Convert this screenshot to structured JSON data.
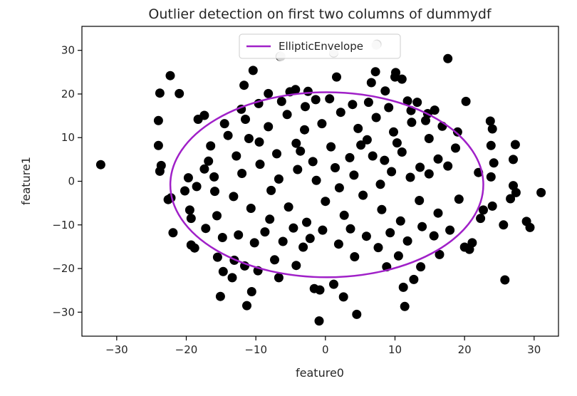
{
  "chart_data": {
    "type": "scatter",
    "title": "Outlier detection on first two columns of dummydf",
    "xlabel": "feature0",
    "ylabel": "feature1",
    "xlim": [
      -35,
      33.5
    ],
    "ylim": [
      -35.5,
      35.5
    ],
    "xticks": [
      -30,
      -20,
      -10,
      0,
      10,
      20,
      30
    ],
    "yticks": [
      -30,
      -20,
      -10,
      0,
      10,
      20,
      30
    ],
    "grid": false,
    "legend": {
      "placement": "upper-center",
      "entries": [
        "EllipticEnvelope"
      ]
    },
    "series": [
      {
        "name": "",
        "kind": "points",
        "color": "#000000",
        "points": [
          [
            -32.3,
            3.8
          ],
          [
            -22.3,
            24.2
          ],
          [
            -23.8,
            20.2
          ],
          [
            -21.0,
            20.1
          ],
          [
            -24.0,
            13.9
          ],
          [
            -24.0,
            8.2
          ],
          [
            -23.6,
            3.6
          ],
          [
            -23.8,
            2.3
          ],
          [
            -22.2,
            -3.8
          ],
          [
            -22.6,
            -4.2
          ],
          [
            -21.9,
            -11.8
          ],
          [
            -19.3,
            -14.6
          ],
          [
            -18.8,
            -15.3
          ],
          [
            -19.5,
            -6.6
          ],
          [
            -19.3,
            -8.5
          ],
          [
            -20.2,
            -2.2
          ],
          [
            -19.7,
            0.8
          ],
          [
            -18.3,
            14.2
          ],
          [
            -17.4,
            15.1
          ],
          [
            -16.5,
            8.1
          ],
          [
            -17.4,
            2.8
          ],
          [
            -15.9,
            -2.3
          ],
          [
            -15.5,
            -17.4
          ],
          [
            -15.1,
            -26.4
          ],
          [
            -14.7,
            -20.7
          ],
          [
            -13.1,
            -18.1
          ],
          [
            -13.4,
            -22.1
          ],
          [
            -11.3,
            -28.5
          ],
          [
            -10.6,
            -25.3
          ],
          [
            -11.6,
            -19.4
          ],
          [
            -10.4,
            25.4
          ],
          [
            -11.7,
            22.0
          ],
          [
            -8.2,
            20.1
          ],
          [
            -6.5,
            28.6
          ],
          [
            -5.1,
            20.5
          ],
          [
            -4.3,
            21.0
          ],
          [
            -2.5,
            20.6
          ],
          [
            -1.4,
            18.7
          ],
          [
            1.2,
            29.4
          ],
          [
            1.6,
            23.9
          ],
          [
            6.6,
            22.6
          ],
          [
            7.2,
            25.1
          ],
          [
            7.4,
            31.4
          ],
          [
            10.0,
            23.9
          ],
          [
            10.1,
            24.9
          ],
          [
            11.0,
            23.4
          ],
          [
            8.6,
            20.7
          ],
          [
            11.8,
            18.4
          ],
          [
            13.2,
            18.1
          ],
          [
            15.7,
            16.3
          ],
          [
            14.7,
            15.5
          ],
          [
            17.6,
            28.1
          ],
          [
            20.2,
            18.3
          ],
          [
            16.8,
            12.6
          ],
          [
            19.0,
            11.3
          ],
          [
            23.7,
            13.8
          ],
          [
            24.0,
            12.0
          ],
          [
            23.8,
            8.2
          ],
          [
            24.2,
            4.2
          ],
          [
            23.8,
            1.0
          ],
          [
            22.0,
            2.0
          ],
          [
            27.3,
            8.4
          ],
          [
            27.0,
            5.0
          ],
          [
            27.0,
            -1.0
          ],
          [
            27.4,
            -2.6
          ],
          [
            26.6,
            -4.0
          ],
          [
            31.0,
            -2.6
          ],
          [
            28.9,
            -9.2
          ],
          [
            29.4,
            -10.6
          ],
          [
            25.6,
            -10.0
          ],
          [
            24.0,
            -5.7
          ],
          [
            22.7,
            -6.6
          ],
          [
            22.3,
            -8.5
          ],
          [
            21.1,
            -14.1
          ],
          [
            20.0,
            -15.1
          ],
          [
            20.7,
            -15.6
          ],
          [
            25.8,
            -22.6
          ],
          [
            16.4,
            -16.8
          ],
          [
            13.7,
            -19.6
          ],
          [
            12.7,
            -22.5
          ],
          [
            11.2,
            -24.3
          ],
          [
            11.4,
            -28.7
          ],
          [
            8.8,
            -19.6
          ],
          [
            4.5,
            -30.5
          ],
          [
            2.6,
            -26.5
          ],
          [
            1.2,
            -23.6
          ],
          [
            -0.8,
            -24.9
          ],
          [
            -1.6,
            -24.6
          ],
          [
            -0.9,
            -32.0
          ],
          [
            -4.2,
            -19.3
          ],
          [
            -6.7,
            -22.1
          ],
          [
            -9.7,
            -20.5
          ],
          [
            -7.3,
            -18.0
          ],
          [
            -3.2,
            -15.1
          ],
          [
            4.2,
            -17.3
          ],
          [
            10.5,
            -17.1
          ],
          [
            -14.0,
            10.5
          ],
          [
            -12.8,
            5.8
          ],
          [
            -11.5,
            14.2
          ],
          [
            -9.5,
            9.0
          ],
          [
            -8.2,
            12.5
          ],
          [
            -7.0,
            6.3
          ],
          [
            -5.5,
            15.3
          ],
          [
            -4.2,
            8.7
          ],
          [
            -3.0,
            11.8
          ],
          [
            -1.8,
            4.5
          ],
          [
            -0.5,
            13.2
          ],
          [
            0.8,
            7.9
          ],
          [
            2.2,
            15.8
          ],
          [
            3.5,
            5.4
          ],
          [
            4.7,
            12.1
          ],
          [
            6.0,
            9.5
          ],
          [
            7.3,
            14.6
          ],
          [
            8.5,
            4.8
          ],
          [
            9.8,
            11.3
          ],
          [
            11.0,
            6.7
          ],
          [
            12.4,
            13.5
          ],
          [
            13.6,
            3.2
          ],
          [
            14.9,
            9.8
          ],
          [
            16.2,
            5.1
          ],
          [
            -13.2,
            -3.5
          ],
          [
            -12.0,
            1.8
          ],
          [
            -10.7,
            -6.2
          ],
          [
            -9.4,
            3.9
          ],
          [
            -8.0,
            -8.7
          ],
          [
            -6.7,
            0.5
          ],
          [
            -5.3,
            -5.9
          ],
          [
            -4.0,
            2.7
          ],
          [
            -2.7,
            -9.4
          ],
          [
            -1.3,
            0.2
          ],
          [
            0.0,
            -4.6
          ],
          [
            1.4,
            3.1
          ],
          [
            2.7,
            -7.8
          ],
          [
            4.1,
            1.4
          ],
          [
            5.4,
            -3.2
          ],
          [
            6.8,
            5.8
          ],
          [
            8.1,
            -6.5
          ],
          [
            9.5,
            2.2
          ],
          [
            10.8,
            -9.1
          ],
          [
            12.2,
            0.9
          ],
          [
            13.5,
            -4.4
          ],
          [
            14.9,
            1.7
          ],
          [
            16.2,
            -7.3
          ],
          [
            17.6,
            3.5
          ],
          [
            -12.5,
            -12.3
          ],
          [
            -10.2,
            -14.1
          ],
          [
            -8.7,
            -11.6
          ],
          [
            -6.1,
            -13.8
          ],
          [
            -4.6,
            -10.7
          ],
          [
            -2.2,
            -13.1
          ],
          [
            -0.4,
            -11.2
          ],
          [
            1.9,
            -14.4
          ],
          [
            3.6,
            -10.9
          ],
          [
            5.9,
            -12.6
          ],
          [
            7.6,
            -15.2
          ],
          [
            9.3,
            -11.8
          ],
          [
            11.8,
            -13.7
          ],
          [
            13.9,
            -10.4
          ],
          [
            15.6,
            -12.5
          ],
          [
            17.9,
            -11.2
          ],
          [
            19.2,
            -4.1
          ],
          [
            18.7,
            7.6
          ],
          [
            -16.8,
            4.6
          ],
          [
            -15.6,
            -7.9
          ],
          [
            -17.2,
            -10.8
          ],
          [
            -14.5,
            13.2
          ],
          [
            -12.1,
            16.5
          ],
          [
            -9.6,
            17.8
          ],
          [
            -6.3,
            18.3
          ],
          [
            -2.9,
            17.1
          ],
          [
            0.6,
            18.9
          ],
          [
            3.9,
            17.6
          ],
          [
            6.2,
            18.1
          ],
          [
            9.1,
            16.9
          ],
          [
            12.3,
            16.2
          ],
          [
            14.4,
            13.9
          ],
          [
            -18.5,
            -1.2
          ],
          [
            -16.0,
            1.0
          ],
          [
            -14.8,
            -12.9
          ],
          [
            -11.0,
            9.8
          ],
          [
            -7.8,
            -2.1
          ],
          [
            -3.6,
            6.9
          ],
          [
            2.0,
            -1.5
          ],
          [
            5.1,
            8.3
          ],
          [
            7.9,
            -0.7
          ],
          [
            10.3,
            8.8
          ]
        ]
      },
      {
        "name": "",
        "kind": "points",
        "color": "#d2d2d2",
        "points": [
          [
            -6.4,
            28.6
          ],
          [
            1.2,
            29.6
          ],
          [
            7.3,
            31.2
          ]
        ]
      },
      {
        "name": "EllipticEnvelope",
        "kind": "ellipse",
        "color": "#a020c8",
        "center": [
          0.2,
          -0.8
        ],
        "radius_x": 22.5,
        "radius_y": 21.2
      }
    ]
  }
}
